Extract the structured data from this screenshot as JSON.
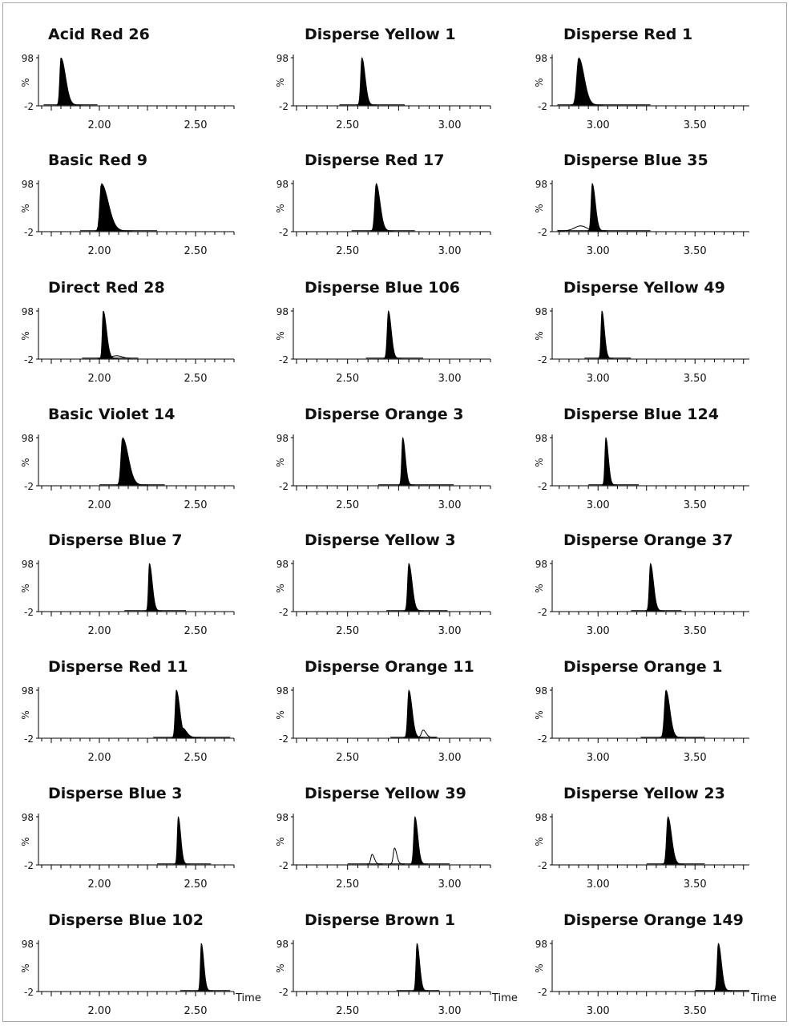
{
  "axis_labels": {
    "y_top": "98",
    "y_bottom": "-2",
    "y_unit": "%",
    "x_unit": "Time"
  },
  "colors": {
    "peak_fill": "#000000",
    "axis": "#000000",
    "frame": "#a8a8a8"
  },
  "chart_data": [
    {
      "type": "line",
      "title": "Acid Red 26",
      "xlim": [
        1.7,
        2.7
      ],
      "ticks": [
        "2.00",
        "2.50"
      ],
      "ylim": [
        -2,
        98
      ],
      "baseline_range": [
        1.71,
        1.99
      ],
      "peaks": [
        {
          "rt": 1.8,
          "height": 98,
          "width": 0.006,
          "tail": 0.018,
          "filled": true
        }
      ]
    },
    {
      "type": "line",
      "title": "Disperse Yellow 1",
      "xlim": [
        2.25,
        3.2
      ],
      "ticks": [
        "2.50",
        "3.00"
      ],
      "ylim": [
        -2,
        98
      ],
      "baseline_range": [
        2.46,
        2.78
      ],
      "peaks": [
        {
          "rt": 2.57,
          "height": 98,
          "width": 0.006,
          "tail": 0.01,
          "filled": true
        }
      ]
    },
    {
      "type": "line",
      "title": "Disperse Red 1",
      "xlim": [
        2.78,
        3.78
      ],
      "ticks": [
        "3.00",
        "3.50"
      ],
      "ylim": [
        -2,
        98
      ],
      "baseline_range": [
        2.79,
        3.27
      ],
      "peaks": [
        {
          "rt": 2.9,
          "height": 98,
          "width": 0.01,
          "tail": 0.018,
          "filled": true
        }
      ]
    },
    {
      "type": "line",
      "title": "Basic Red 9",
      "xlim": [
        1.7,
        2.7
      ],
      "ticks": [
        "2.00",
        "2.50"
      ],
      "ylim": [
        -2,
        98
      ],
      "baseline_range": [
        1.9,
        2.3
      ],
      "peaks": [
        {
          "rt": 2.01,
          "height": 98,
          "width": 0.008,
          "tail": 0.028,
          "filled": true
        }
      ]
    },
    {
      "type": "line",
      "title": "Disperse Red 17",
      "xlim": [
        2.25,
        3.2
      ],
      "ticks": [
        "2.50",
        "3.00"
      ],
      "ylim": [
        -2,
        98
      ],
      "baseline_range": [
        2.52,
        2.83
      ],
      "peaks": [
        {
          "rt": 2.64,
          "height": 98,
          "width": 0.007,
          "tail": 0.012,
          "filled": true
        }
      ]
    },
    {
      "type": "line",
      "title": "Disperse Blue 35",
      "xlim": [
        2.78,
        3.78
      ],
      "ticks": [
        "3.00",
        "3.50"
      ],
      "ylim": [
        -2,
        98
      ],
      "baseline_range": [
        2.79,
        3.27
      ],
      "peaks": [
        {
          "rt": 2.97,
          "height": 98,
          "width": 0.006,
          "tail": 0.01,
          "filled": true
        },
        {
          "rt": 2.91,
          "height": 10,
          "width": 0.03,
          "tail": 0.0,
          "filled": false
        }
      ]
    },
    {
      "type": "line",
      "title": "Direct Red 28",
      "xlim": [
        1.7,
        2.7
      ],
      "ticks": [
        "2.00",
        "2.50"
      ],
      "ylim": [
        -2,
        98
      ],
      "baseline_range": [
        1.91,
        2.16
      ],
      "peaks": [
        {
          "rt": 2.02,
          "height": 98,
          "width": 0.005,
          "tail": 0.012,
          "filled": true
        },
        {
          "rt": 2.09,
          "height": 5,
          "width": 0.025,
          "tail": 0.0,
          "filled": false
        }
      ]
    },
    {
      "type": "line",
      "title": "Disperse Blue 106",
      "xlim": [
        2.25,
        3.2
      ],
      "ticks": [
        "2.50",
        "3.00"
      ],
      "ylim": [
        -2,
        98
      ],
      "baseline_range": [
        2.59,
        2.87
      ],
      "peaks": [
        {
          "rt": 2.7,
          "height": 98,
          "width": 0.006,
          "tail": 0.008,
          "filled": true
        }
      ]
    },
    {
      "type": "line",
      "title": "Disperse Yellow 49",
      "xlim": [
        2.78,
        3.78
      ],
      "ticks": [
        "3.00",
        "3.50"
      ],
      "ylim": [
        -2,
        98
      ],
      "baseline_range": [
        2.93,
        3.17
      ],
      "peaks": [
        {
          "rt": 3.02,
          "height": 98,
          "width": 0.005,
          "tail": 0.008,
          "filled": true
        }
      ]
    },
    {
      "type": "line",
      "title": "Basic Violet 14",
      "xlim": [
        1.7,
        2.7
      ],
      "ticks": [
        "2.00",
        "2.50"
      ],
      "ylim": [
        -2,
        98
      ],
      "baseline_range": [
        2.0,
        2.34
      ],
      "peaks": [
        {
          "rt": 2.12,
          "height": 98,
          "width": 0.008,
          "tail": 0.022,
          "filled": true
        }
      ]
    },
    {
      "type": "line",
      "title": "Disperse Orange 3",
      "xlim": [
        2.25,
        3.2
      ],
      "ticks": [
        "2.50",
        "3.00"
      ],
      "ylim": [
        -2,
        98
      ],
      "baseline_range": [
        2.65,
        3.02
      ],
      "peaks": [
        {
          "rt": 2.77,
          "height": 98,
          "width": 0.005,
          "tail": 0.008,
          "filled": true
        }
      ]
    },
    {
      "type": "line",
      "title": "Disperse Blue 124",
      "xlim": [
        2.78,
        3.78
      ],
      "ticks": [
        "3.00",
        "3.50"
      ],
      "ylim": [
        -2,
        98
      ],
      "baseline_range": [
        2.95,
        3.21
      ],
      "peaks": [
        {
          "rt": 3.04,
          "height": 98,
          "width": 0.005,
          "tail": 0.008,
          "filled": true
        }
      ]
    },
    {
      "type": "line",
      "title": "Disperse Blue 7",
      "xlim": [
        1.7,
        2.7
      ],
      "ticks": [
        "2.00",
        "2.50"
      ],
      "ylim": [
        -2,
        98
      ],
      "baseline_range": [
        2.13,
        2.45
      ],
      "peaks": [
        {
          "rt": 2.26,
          "height": 98,
          "width": 0.005,
          "tail": 0.01,
          "filled": true
        }
      ]
    },
    {
      "type": "line",
      "title": "Disperse Yellow 3",
      "xlim": [
        2.25,
        3.2
      ],
      "ticks": [
        "2.50",
        "3.00"
      ],
      "ylim": [
        -2,
        98
      ],
      "baseline_range": [
        2.69,
        2.99
      ],
      "peaks": [
        {
          "rt": 2.8,
          "height": 98,
          "width": 0.006,
          "tail": 0.01,
          "filled": true
        }
      ]
    },
    {
      "type": "line",
      "title": "Disperse Orange 37",
      "xlim": [
        2.78,
        3.78
      ],
      "ticks": [
        "3.00",
        "3.50"
      ],
      "ylim": [
        -2,
        98
      ],
      "baseline_range": [
        3.17,
        3.43
      ],
      "peaks": [
        {
          "rt": 3.27,
          "height": 98,
          "width": 0.006,
          "tail": 0.01,
          "filled": true
        }
      ]
    },
    {
      "type": "line",
      "title": "Disperse Red 11",
      "xlim": [
        1.7,
        2.7
      ],
      "ticks": [
        "2.00",
        "2.50"
      ],
      "ylim": [
        -2,
        98
      ],
      "baseline_range": [
        2.28,
        2.68
      ],
      "peaks": [
        {
          "rt": 2.4,
          "height": 98,
          "width": 0.006,
          "tail": 0.012,
          "filled": true
        },
        {
          "rt": 2.43,
          "height": 20,
          "width": 0.012,
          "tail": 0.01,
          "filled": true
        }
      ]
    },
    {
      "type": "line",
      "title": "Disperse Orange 11",
      "xlim": [
        2.25,
        3.2
      ],
      "ticks": [
        "2.50",
        "3.00"
      ],
      "ylim": [
        -2,
        98
      ],
      "baseline_range": [
        2.71,
        2.94
      ],
      "peaks": [
        {
          "rt": 2.8,
          "height": 98,
          "width": 0.006,
          "tail": 0.01,
          "filled": true
        },
        {
          "rt": 2.87,
          "height": 15,
          "width": 0.008,
          "tail": 0.006,
          "filled": false
        }
      ]
    },
    {
      "type": "line",
      "title": "Disperse Orange 1",
      "xlim": [
        2.78,
        3.78
      ],
      "ticks": [
        "3.00",
        "3.50"
      ],
      "ylim": [
        -2,
        98
      ],
      "baseline_range": [
        3.22,
        3.55
      ],
      "peaks": [
        {
          "rt": 3.35,
          "height": 98,
          "width": 0.008,
          "tail": 0.012,
          "filled": true
        }
      ]
    },
    {
      "type": "line",
      "title": "Disperse Blue 3",
      "xlim": [
        1.7,
        2.7
      ],
      "ticks": [
        "2.00",
        "2.50"
      ],
      "ylim": [
        -2,
        98
      ],
      "baseline_range": [
        2.3,
        2.58
      ],
      "peaks": [
        {
          "rt": 2.41,
          "height": 98,
          "width": 0.005,
          "tail": 0.008,
          "filled": true
        }
      ]
    },
    {
      "type": "line",
      "title": "Disperse Yellow 39",
      "xlim": [
        2.25,
        3.2
      ],
      "ticks": [
        "2.50",
        "3.00"
      ],
      "ylim": [
        -2,
        98
      ],
      "baseline_range": [
        2.5,
        3.0
      ],
      "peaks": [
        {
          "rt": 2.62,
          "height": 20,
          "width": 0.006,
          "tail": 0.005,
          "filled": false
        },
        {
          "rt": 2.73,
          "height": 33,
          "width": 0.006,
          "tail": 0.005,
          "filled": false
        },
        {
          "rt": 2.83,
          "height": 98,
          "width": 0.006,
          "tail": 0.008,
          "filled": true
        }
      ]
    },
    {
      "type": "line",
      "title": "Disperse Yellow 23",
      "xlim": [
        2.78,
        3.78
      ],
      "ticks": [
        "3.00",
        "3.50"
      ],
      "ylim": [
        -2,
        98
      ],
      "baseline_range": [
        3.25,
        3.55
      ],
      "peaks": [
        {
          "rt": 3.36,
          "height": 98,
          "width": 0.007,
          "tail": 0.012,
          "filled": true
        }
      ]
    },
    {
      "type": "line",
      "title": "Disperse Blue 102",
      "xlim": [
        1.7,
        2.7
      ],
      "ticks": [
        "2.00",
        "2.50"
      ],
      "ylim": [
        -2,
        98
      ],
      "baseline_range": [
        2.42,
        2.68
      ],
      "peaks": [
        {
          "rt": 2.53,
          "height": 98,
          "width": 0.005,
          "tail": 0.008,
          "filled": true
        }
      ]
    },
    {
      "type": "line",
      "title": "Disperse Brown 1",
      "xlim": [
        2.25,
        3.2
      ],
      "ticks": [
        "2.50",
        "3.00"
      ],
      "ylim": [
        -2,
        98
      ],
      "baseline_range": [
        2.74,
        2.95
      ],
      "peaks": [
        {
          "rt": 2.84,
          "height": 98,
          "width": 0.005,
          "tail": 0.008,
          "filled": true
        }
      ]
    },
    {
      "type": "line",
      "title": "Disperse Orange 149",
      "xlim": [
        2.78,
        3.78
      ],
      "ticks": [
        "3.00",
        "3.50"
      ],
      "ylim": [
        -2,
        98
      ],
      "baseline_range": [
        3.5,
        3.78
      ],
      "peaks": [
        {
          "rt": 3.62,
          "height": 98,
          "width": 0.006,
          "tail": 0.01,
          "filled": true
        }
      ]
    }
  ]
}
